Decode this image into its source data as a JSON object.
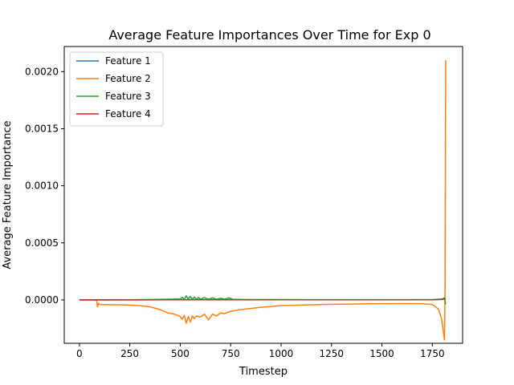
{
  "chart_data": {
    "type": "line",
    "title": "Average Feature Importances Over Time for Exp 0",
    "xlabel": "Timestep",
    "ylabel": "Average Feature Importance",
    "xlim": [
      -75,
      1900
    ],
    "ylim": [
      -0.00038,
      0.00222
    ],
    "xticks": [
      0,
      250,
      500,
      750,
      1000,
      1250,
      1500,
      1750
    ],
    "xtick_labels": [
      "0",
      "250",
      "500",
      "750",
      "1000",
      "1250",
      "1500",
      "1750"
    ],
    "yticks": [
      0.0,
      0.0005,
      0.001,
      0.0015,
      0.002
    ],
    "ytick_labels": [
      "0.0000",
      "0.0005",
      "0.0010",
      "0.0015",
      "0.0020"
    ],
    "legend_position": "top-left",
    "grid": false,
    "series": [
      {
        "name": "Feature 1",
        "color": "#1f77b4",
        "x": [
          0,
          250,
          500,
          750,
          1000,
          1250,
          1500,
          1750,
          1800,
          1810,
          1815
        ],
        "y": [
          0,
          0,
          2e-06,
          2e-06,
          1e-06,
          1e-06,
          1e-06,
          1e-06,
          5e-06,
          1e-05,
          2e-06
        ]
      },
      {
        "name": "Feature 2",
        "color": "#ff7f0e",
        "x": [
          0,
          85,
          90,
          95,
          100,
          150,
          200,
          250,
          300,
          350,
          400,
          420,
          440,
          460,
          480,
          500,
          510,
          520,
          530,
          540,
          550,
          560,
          570,
          580,
          600,
          620,
          640,
          660,
          680,
          700,
          720,
          750,
          800,
          900,
          1000,
          1100,
          1200,
          1300,
          1400,
          1500,
          1600,
          1700,
          1750,
          1780,
          1795,
          1805,
          1810,
          1813,
          1816
        ],
        "y": [
          0,
          0,
          -6e-05,
          -3e-05,
          -4e-05,
          -4.2e-05,
          -4.3e-05,
          -4.5e-05,
          -5e-05,
          -6e-05,
          -8.5e-05,
          -0.0001,
          -0.000115,
          -0.00012,
          -0.00013,
          -0.000145,
          -0.00017,
          -0.000135,
          -0.000205,
          -0.000145,
          -0.000195,
          -0.00014,
          -0.000165,
          -0.00014,
          -0.00015,
          -0.000125,
          -0.000175,
          -0.000125,
          -0.00014,
          -0.000115,
          -0.00012,
          -0.0001,
          -8.5e-05,
          -6.5e-05,
          -5e-05,
          -4.5e-05,
          -4e-05,
          -3.7e-05,
          -3.5e-05,
          -3.3e-05,
          -3.2e-05,
          -3.3e-05,
          -4e-05,
          -8e-05,
          -0.00016,
          -0.00028,
          -0.00035,
          0.0001,
          0.0021
        ]
      },
      {
        "name": "Feature 3",
        "color": "#2ca02c",
        "x": [
          0,
          250,
          400,
          500,
          510,
          520,
          530,
          540,
          550,
          560,
          570,
          580,
          590,
          600,
          620,
          640,
          660,
          680,
          700,
          720,
          740,
          760,
          800,
          1000,
          1250,
          1500,
          1750,
          1800,
          1810,
          1816
        ],
        "y": [
          0,
          1e-06,
          5e-06,
          8e-06,
          2.2e-05,
          5e-06,
          3.5e-05,
          8e-06,
          3e-05,
          5e-06,
          2.5e-05,
          4e-06,
          2.2e-05,
          6e-06,
          2e-05,
          5e-06,
          1.8e-05,
          6e-06,
          1.5e-05,
          6e-06,
          1.8e-05,
          6e-06,
          4e-06,
          3e-06,
          2e-06,
          2e-06,
          2e-06,
          8e-06,
          2e-05,
          -4e-05
        ]
      },
      {
        "name": "Feature 4",
        "color": "#d62728",
        "x": [
          0,
          250,
          500,
          750,
          1000,
          1250,
          1500,
          1750,
          1800,
          1810,
          1816
        ],
        "y": [
          0,
          0,
          1e-06,
          1e-06,
          1e-06,
          1e-06,
          1e-06,
          2e-06,
          4e-06,
          1e-05,
          5e-06
        ]
      }
    ]
  }
}
